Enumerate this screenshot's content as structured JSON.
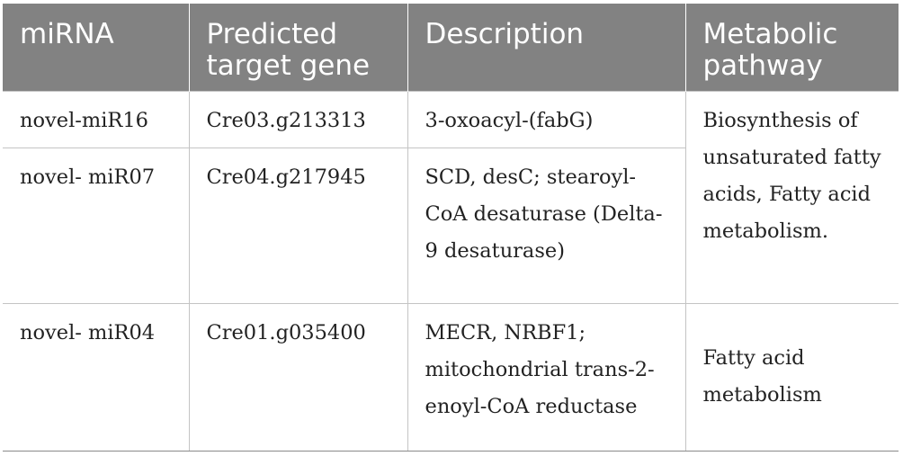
{
  "table": {
    "headers": [
      "miRNA",
      "Predicted target gene",
      "Description",
      "Metabolic pathway"
    ],
    "rows": [
      {
        "mirna": "novel-miR16",
        "gene": "Cre03.g213313",
        "description": "3-oxoacyl-(fabG)"
      },
      {
        "mirna": "novel- miR07",
        "gene": "Cre04.g217945",
        "description": "SCD, desC; stearoyl-CoA desaturase (Delta-9 desaturase)"
      },
      {
        "mirna": "novel- miR04",
        "gene": "Cre01.g035400",
        "description": "MECR, NRBF1; mitochondrial trans-2-enoyl-CoA reductase"
      }
    ],
    "pathways": [
      "Biosynthesis of unsaturated fatty acids, Fatty acid metabolism.",
      "Fatty acid metabolism"
    ]
  },
  "colors": {
    "header_bg": "#828282",
    "header_text": "#ffffff",
    "grid": "#c4c4c4"
  }
}
